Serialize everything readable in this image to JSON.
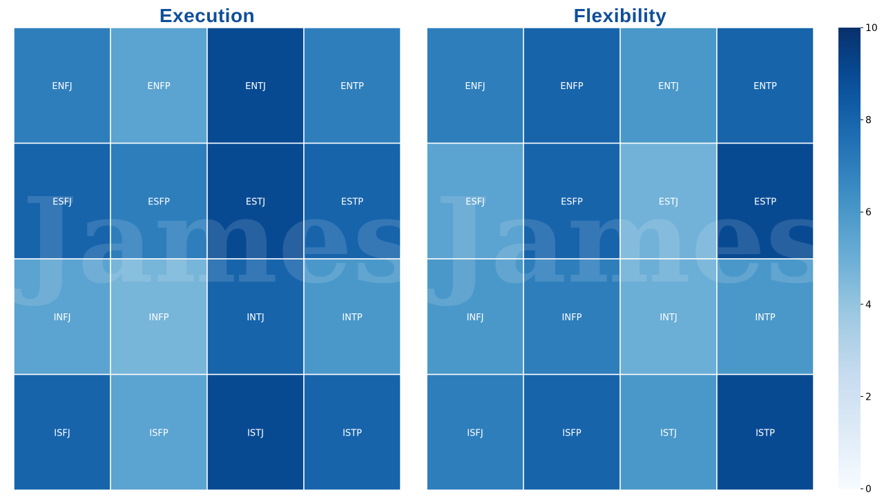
{
  "chart_data": [
    {
      "type": "heatmap",
      "title": "Execution",
      "rows": [
        [
          "ENFJ",
          "ENFP",
          "ENTJ",
          "ENTP"
        ],
        [
          "ESFJ",
          "ESFP",
          "ESTJ",
          "ESTP"
        ],
        [
          "INFJ",
          "INFP",
          "INTJ",
          "INTP"
        ],
        [
          "ISFJ",
          "ISFP",
          "ISTJ",
          "ISTP"
        ]
      ],
      "values": [
        [
          7,
          5.5,
          9,
          7
        ],
        [
          8,
          7,
          9,
          8
        ],
        [
          5.5,
          4.7,
          8,
          6
        ],
        [
          8,
          5.5,
          9,
          8
        ]
      ],
      "vmin": 0,
      "vmax": 10
    },
    {
      "type": "heatmap",
      "title": "Flexibility",
      "rows": [
        [
          "ENFJ",
          "ENFP",
          "ENTJ",
          "ENTP"
        ],
        [
          "ESFJ",
          "ESFP",
          "ESTJ",
          "ESTP"
        ],
        [
          "INFJ",
          "INFP",
          "INTJ",
          "INTP"
        ],
        [
          "ISFJ",
          "ISFP",
          "ISTJ",
          "ISTP"
        ]
      ],
      "values": [
        [
          7,
          8,
          6,
          8
        ],
        [
          5.5,
          8,
          4.8,
          9
        ],
        [
          6,
          7,
          5,
          6
        ],
        [
          7,
          8,
          6,
          9
        ]
      ],
      "vmin": 0,
      "vmax": 10
    }
  ],
  "colorbar": {
    "ticks": [
      "0",
      "2",
      "4",
      "6",
      "8",
      "10"
    ],
    "tick_values": [
      0,
      2,
      4,
      6,
      8,
      10
    ],
    "colormap": "Blues"
  },
  "watermark": "James"
}
